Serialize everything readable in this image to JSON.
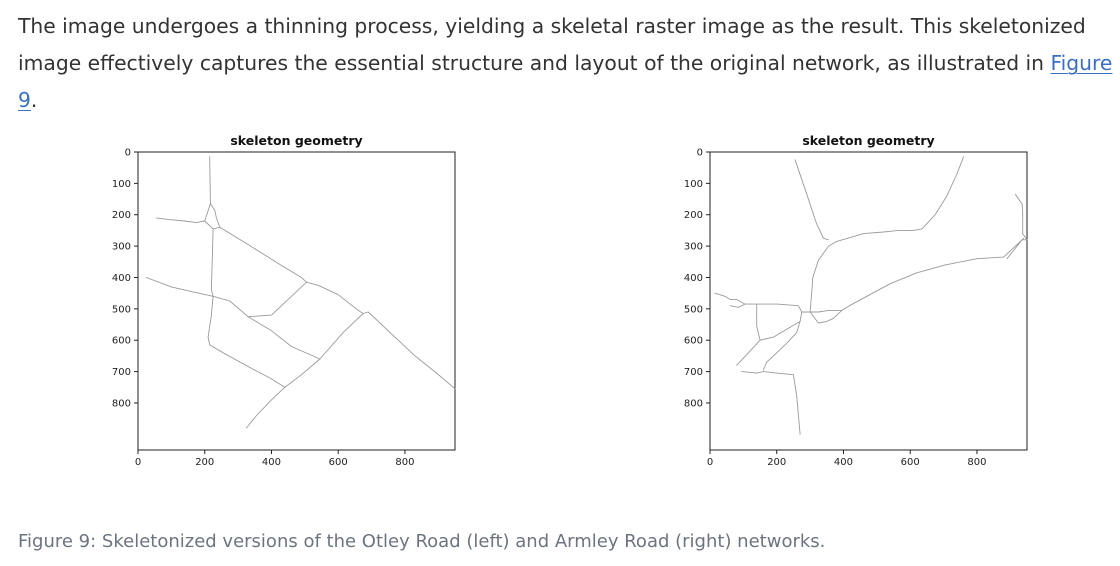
{
  "paragraph": {
    "text_before": "The image undergoes a thinning process, yielding a skeletal raster image as the result. This skeletonized image effectively captures the essential structure and layout of the original network, as illustrated in ",
    "link_text": "Figure 9",
    "text_after": "."
  },
  "caption": "Figure 9: Skeletonized versions of the Otley Road (left) and Armley Road (right) networks.",
  "colors": {
    "body_text": "#333333",
    "link": "#3a6fc4",
    "caption": "#6b7480",
    "skeleton_line": "#9a9a9a"
  },
  "chart_data": [
    {
      "type": "image",
      "title": "skeleton geometry",
      "xlim": [
        0,
        950
      ],
      "ylim": [
        950,
        0
      ],
      "xticks": [
        0,
        200,
        400,
        600,
        800
      ],
      "yticks": [
        0,
        100,
        200,
        300,
        400,
        500,
        600,
        700,
        800
      ],
      "paths": [
        [
          [
            215,
            15
          ],
          [
            216,
            100
          ],
          [
            217,
            165
          ]
        ],
        [
          [
            55,
            210
          ],
          [
            90,
            215
          ],
          [
            140,
            220
          ],
          [
            175,
            225
          ],
          [
            200,
            220
          ],
          [
            217,
            165
          ],
          [
            230,
            185
          ],
          [
            235,
            210
          ],
          [
            245,
            240
          ],
          [
            225,
            245
          ],
          [
            200,
            220
          ]
        ],
        [
          [
            245,
            240
          ],
          [
            330,
            295
          ],
          [
            420,
            355
          ],
          [
            490,
            400
          ],
          [
            505,
            415
          ]
        ],
        [
          [
            25,
            400
          ],
          [
            100,
            430
          ],
          [
            160,
            445
          ],
          [
            225,
            460
          ]
        ],
        [
          [
            225,
            245
          ],
          [
            222,
            360
          ],
          [
            220,
            440
          ],
          [
            225,
            460
          ]
        ],
        [
          [
            225,
            460
          ],
          [
            220,
            520
          ],
          [
            210,
            590
          ],
          [
            215,
            615
          ],
          [
            255,
            640
          ],
          [
            340,
            690
          ],
          [
            395,
            720
          ],
          [
            440,
            750
          ]
        ],
        [
          [
            225,
            460
          ],
          [
            275,
            475
          ],
          [
            330,
            525
          ],
          [
            400,
            570
          ],
          [
            460,
            620
          ],
          [
            545,
            660
          ]
        ],
        [
          [
            505,
            415
          ],
          [
            455,
            465
          ],
          [
            400,
            520
          ],
          [
            330,
            525
          ]
        ],
        [
          [
            505,
            415
          ],
          [
            540,
            425
          ],
          [
            600,
            455
          ],
          [
            660,
            505
          ],
          [
            675,
            515
          ]
        ],
        [
          [
            675,
            515
          ],
          [
            615,
            575
          ],
          [
            545,
            660
          ],
          [
            490,
            710
          ],
          [
            440,
            750
          ]
        ],
        [
          [
            675,
            515
          ],
          [
            690,
            510
          ],
          [
            760,
            580
          ],
          [
            830,
            650
          ],
          [
            895,
            705
          ],
          [
            950,
            755
          ]
        ],
        [
          [
            440,
            750
          ],
          [
            400,
            790
          ],
          [
            355,
            840
          ],
          [
            325,
            880
          ]
        ]
      ]
    },
    {
      "type": "image",
      "title": "skeleton geometry",
      "xlim": [
        0,
        950
      ],
      "ylim": [
        950,
        0
      ],
      "xticks": [
        0,
        200,
        400,
        600,
        800
      ],
      "yticks": [
        0,
        100,
        200,
        300,
        400,
        500,
        600,
        700,
        800
      ],
      "paths": [
        [
          [
            255,
            25
          ],
          [
            290,
            135
          ],
          [
            315,
            215
          ],
          [
            320,
            230
          ],
          [
            340,
            275
          ],
          [
            355,
            280
          ]
        ],
        [
          [
            760,
            15
          ],
          [
            740,
            70
          ],
          [
            710,
            140
          ],
          [
            675,
            200
          ],
          [
            635,
            245
          ],
          [
            610,
            250
          ],
          [
            565,
            250
          ],
          [
            520,
            255
          ],
          [
            460,
            260
          ],
          [
            380,
            285
          ],
          [
            355,
            300
          ],
          [
            325,
            345
          ],
          [
            308,
            400
          ],
          [
            305,
            445
          ],
          [
            300,
            510
          ]
        ],
        [
          [
            915,
            135
          ],
          [
            935,
            165
          ],
          [
            937,
            190
          ],
          [
            937,
            260
          ],
          [
            950,
            280
          ],
          [
            935,
            280
          ],
          [
            890,
            340
          ]
        ],
        [
          [
            940,
            275
          ],
          [
            880,
            335
          ],
          [
            800,
            340
          ],
          [
            705,
            360
          ],
          [
            620,
            385
          ],
          [
            540,
            420
          ],
          [
            470,
            460
          ],
          [
            418,
            490
          ],
          [
            395,
            505
          ]
        ],
        [
          [
            15,
            450
          ],
          [
            45,
            460
          ],
          [
            60,
            470
          ],
          [
            80,
            470
          ],
          [
            105,
            485
          ],
          [
            85,
            495
          ],
          [
            60,
            490
          ]
        ],
        [
          [
            105,
            485
          ],
          [
            140,
            485
          ],
          [
            200,
            485
          ],
          [
            265,
            490
          ],
          [
            275,
            510
          ],
          [
            300,
            510
          ],
          [
            325,
            510
          ],
          [
            355,
            505
          ],
          [
            380,
            505
          ],
          [
            395,
            505
          ]
        ],
        [
          [
            395,
            505
          ],
          [
            370,
            530
          ],
          [
            350,
            540
          ],
          [
            325,
            545
          ],
          [
            300,
            510
          ],
          [
            275,
            510
          ],
          [
            270,
            540
          ]
        ],
        [
          [
            140,
            485
          ],
          [
            140,
            555
          ],
          [
            150,
            600
          ],
          [
            190,
            590
          ],
          [
            270,
            540
          ],
          [
            260,
            575
          ],
          [
            230,
            610
          ],
          [
            200,
            640
          ],
          [
            170,
            670
          ],
          [
            160,
            695
          ]
        ],
        [
          [
            80,
            680
          ],
          [
            115,
            640
          ],
          [
            150,
            600
          ]
        ],
        [
          [
            95,
            700
          ],
          [
            140,
            705
          ],
          [
            160,
            700
          ],
          [
            200,
            705
          ],
          [
            250,
            710
          ],
          [
            260,
            780
          ],
          [
            270,
            900
          ]
        ]
      ]
    }
  ]
}
